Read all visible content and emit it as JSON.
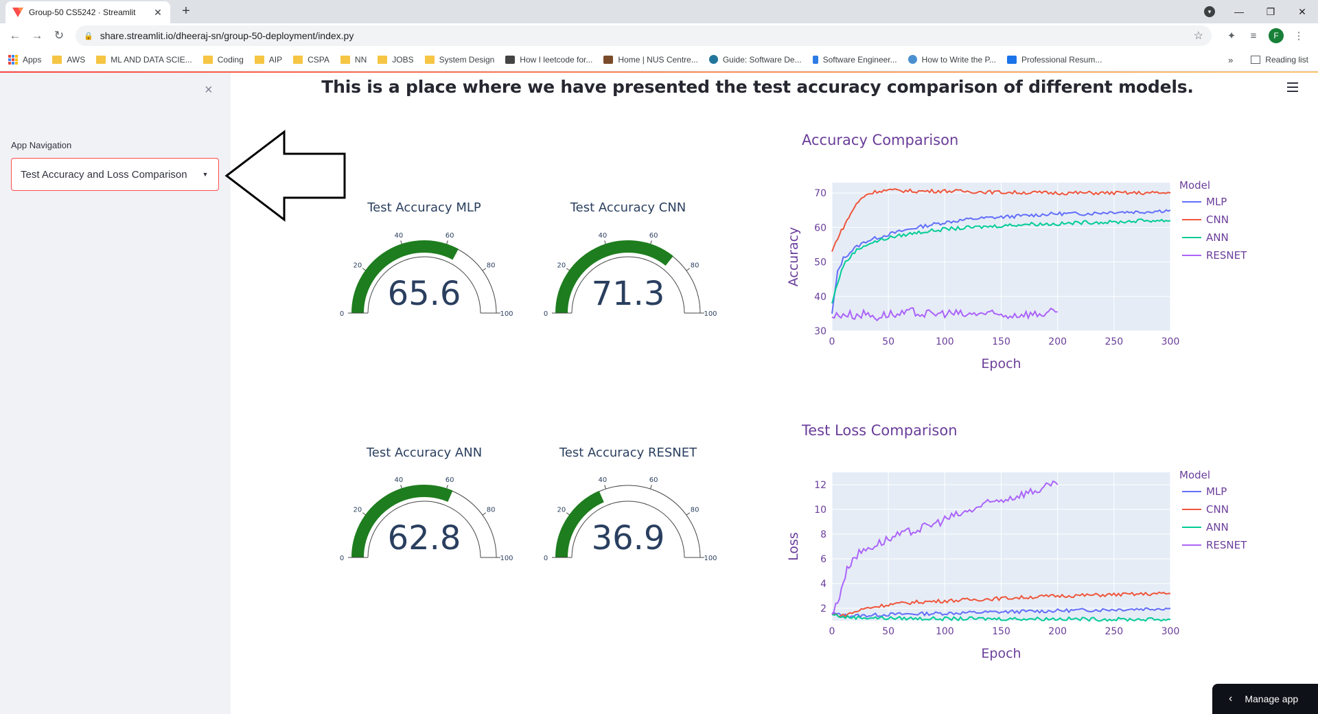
{
  "browser": {
    "tab_title": "Group-50 CS5242 · Streamlit",
    "url": "share.streamlit.io/dheeraj-sn/group-50-deployment/index.py",
    "avatar_letter": "F",
    "bookmarks": [
      "AWS",
      "ML AND DATA SCIE...",
      "Coding",
      "AIP",
      "CSPA",
      "NN",
      "JOBS",
      "System Design",
      "How I leetcode for...",
      "Home | NUS Centre...",
      "Guide: Software De...",
      "Software Engineer...",
      "How to Write the P...",
      "Professional Resum..."
    ],
    "apps_label": "Apps",
    "more_label": "»",
    "reading_list": "Reading list"
  },
  "sidebar": {
    "close_glyph": "×",
    "nav_label": "App Navigation",
    "selected": "Test Accuracy and Loss Comparison"
  },
  "main": {
    "title": "This is a place where we have presented the test accuracy comparison of different models.",
    "manage_app": "Manage app"
  },
  "gauges": [
    {
      "title": "Test Accuracy MLP",
      "value": 65.6
    },
    {
      "title": "Test Accuracy CNN",
      "value": 71.3
    },
    {
      "title": "Test Accuracy ANN",
      "value": 62.8
    },
    {
      "title": "Test Accuracy RESNET",
      "value": 36.9
    }
  ],
  "gauge_ticks": [
    "0",
    "20",
    "40",
    "60",
    "80",
    "100"
  ],
  "colors": {
    "gauge_bar": "#1e7d1e",
    "mlp": "#636efa",
    "cnn": "#ef553b",
    "ann": "#00cc96",
    "resnet": "#ab63fa",
    "plot_bg": "#e5ecf6",
    "axis_text": "#6a3d9a"
  },
  "chart_data": [
    {
      "type": "line",
      "title": "Accuracy Comparison",
      "xlabel": "Epoch",
      "ylabel": "Accuracy",
      "xlim": [
        0,
        300
      ],
      "ylim": [
        30,
        73
      ],
      "xticks": [
        0,
        50,
        100,
        150,
        200,
        250,
        300
      ],
      "yticks": [
        30,
        40,
        50,
        60,
        70
      ],
      "legend_title": "Model",
      "legend": "right",
      "series": [
        {
          "name": "MLP",
          "x": [
            0,
            5,
            10,
            20,
            30,
            50,
            75,
            100,
            125,
            150,
            175,
            200,
            225,
            250,
            275,
            300
          ],
          "y": [
            35,
            47,
            51,
            54,
            56,
            58,
            60,
            61.5,
            62.5,
            63,
            63.5,
            64,
            64,
            64.5,
            64.5,
            65
          ]
        },
        {
          "name": "CNN",
          "x": [
            0,
            5,
            10,
            15,
            20,
            25,
            30,
            40,
            50,
            75,
            100,
            150,
            200,
            250,
            300
          ],
          "y": [
            53,
            57,
            60,
            63,
            66,
            68,
            69.5,
            70.5,
            70.8,
            70.5,
            70.6,
            70.2,
            70,
            70,
            70
          ]
        },
        {
          "name": "ANN",
          "x": [
            0,
            5,
            10,
            20,
            30,
            50,
            75,
            100,
            125,
            150,
            175,
            200,
            225,
            250,
            275,
            300
          ],
          "y": [
            38,
            44,
            49,
            53,
            55,
            57,
            58.5,
            59.5,
            60,
            60.5,
            61,
            61,
            61.5,
            61.5,
            62,
            62
          ]
        },
        {
          "name": "RESNET",
          "x": [
            0,
            10,
            20,
            30,
            40,
            50,
            60,
            70,
            80,
            90,
            100,
            110,
            120,
            130,
            140,
            150,
            160,
            170,
            180,
            190,
            200
          ],
          "y": [
            34,
            35,
            34.5,
            35,
            34,
            35,
            34.5,
            35.5,
            35,
            34.8,
            35.2,
            35,
            34.5,
            35.2,
            34.8,
            34.5,
            34.6,
            35,
            34.8,
            35.2,
            35.5
          ]
        }
      ]
    },
    {
      "type": "line",
      "title": "Test Loss Comparison",
      "xlabel": "Epoch",
      "ylabel": "Loss",
      "xlim": [
        0,
        300
      ],
      "ylim": [
        1,
        13
      ],
      "xticks": [
        0,
        50,
        100,
        150,
        200,
        250,
        300
      ],
      "yticks": [
        2,
        4,
        6,
        8,
        10,
        12
      ],
      "legend_title": "Model",
      "legend": "right",
      "series": [
        {
          "name": "MLP",
          "x": [
            0,
            10,
            25,
            50,
            100,
            150,
            200,
            250,
            300
          ],
          "y": [
            1.6,
            1.4,
            1.4,
            1.5,
            1.6,
            1.7,
            1.8,
            1.9,
            2.0
          ]
        },
        {
          "name": "CNN",
          "x": [
            0,
            10,
            20,
            30,
            50,
            75,
            100,
            150,
            200,
            250,
            300
          ],
          "y": [
            1.5,
            1.4,
            1.7,
            2.0,
            2.3,
            2.5,
            2.6,
            2.8,
            3.0,
            3.1,
            3.2
          ]
        },
        {
          "name": "ANN",
          "x": [
            0,
            10,
            25,
            50,
            100,
            150,
            200,
            250,
            300
          ],
          "y": [
            1.5,
            1.3,
            1.25,
            1.2,
            1.15,
            1.15,
            1.15,
            1.1,
            1.1
          ]
        },
        {
          "name": "RESNET",
          "x": [
            0,
            5,
            10,
            15,
            20,
            30,
            40,
            50,
            60,
            70,
            80,
            90,
            100,
            110,
            120,
            130,
            140,
            150,
            160,
            170,
            180,
            190,
            200
          ],
          "y": [
            1.5,
            2.5,
            4.2,
            5.5,
            6.2,
            6.8,
            7.2,
            7.6,
            7.9,
            8.2,
            8.5,
            8.8,
            9.2,
            9.5,
            9.8,
            10.2,
            10.5,
            10.8,
            11.0,
            11.3,
            11.5,
            11.8,
            12.0
          ]
        }
      ]
    }
  ]
}
